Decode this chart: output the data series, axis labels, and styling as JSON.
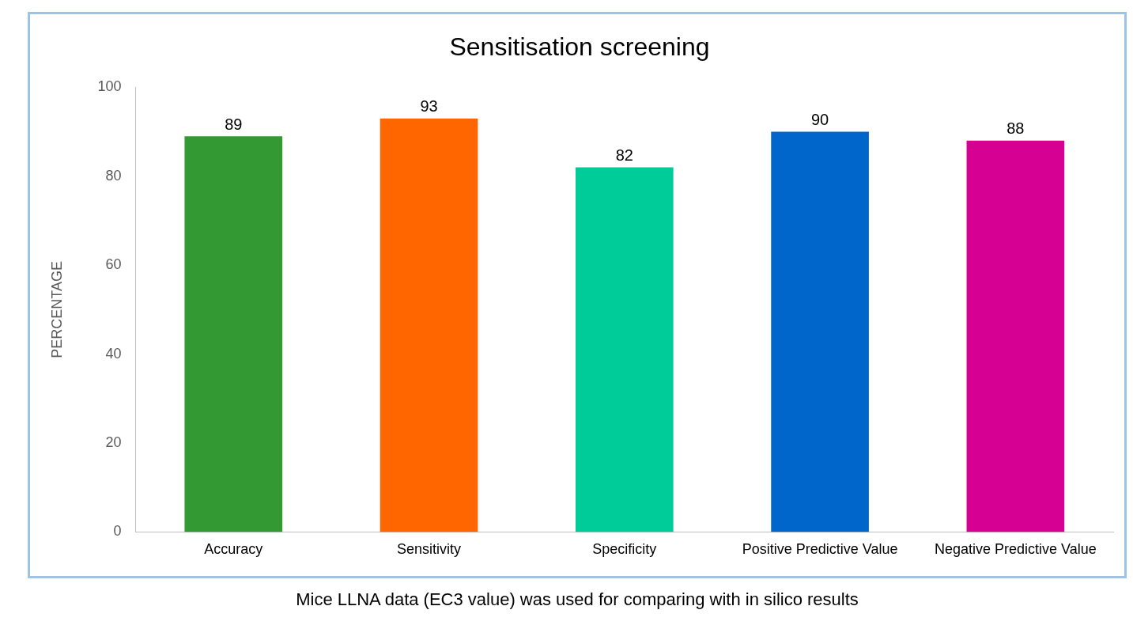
{
  "chart_data": {
    "type": "bar",
    "title": "Sensitisation screening",
    "ylabel": "PERCENTAGE",
    "categories": [
      "Accuracy",
      "Sensitivity",
      "Specificity",
      "Positive Predictive Value",
      "Negative Predictive Value"
    ],
    "values": [
      89,
      93,
      82,
      90,
      88
    ],
    "colors": [
      "#339933",
      "#ff6600",
      "#00cc99",
      "#0066cc",
      "#d60093"
    ],
    "ylim": [
      0,
      100
    ],
    "yticks": [
      0,
      20,
      40,
      60,
      80,
      100
    ],
    "grid": false,
    "legend": false,
    "data_labels": true,
    "annotations": [
      "Mice LLNA data (EC3 value) was used for comparing with in silico results"
    ]
  }
}
